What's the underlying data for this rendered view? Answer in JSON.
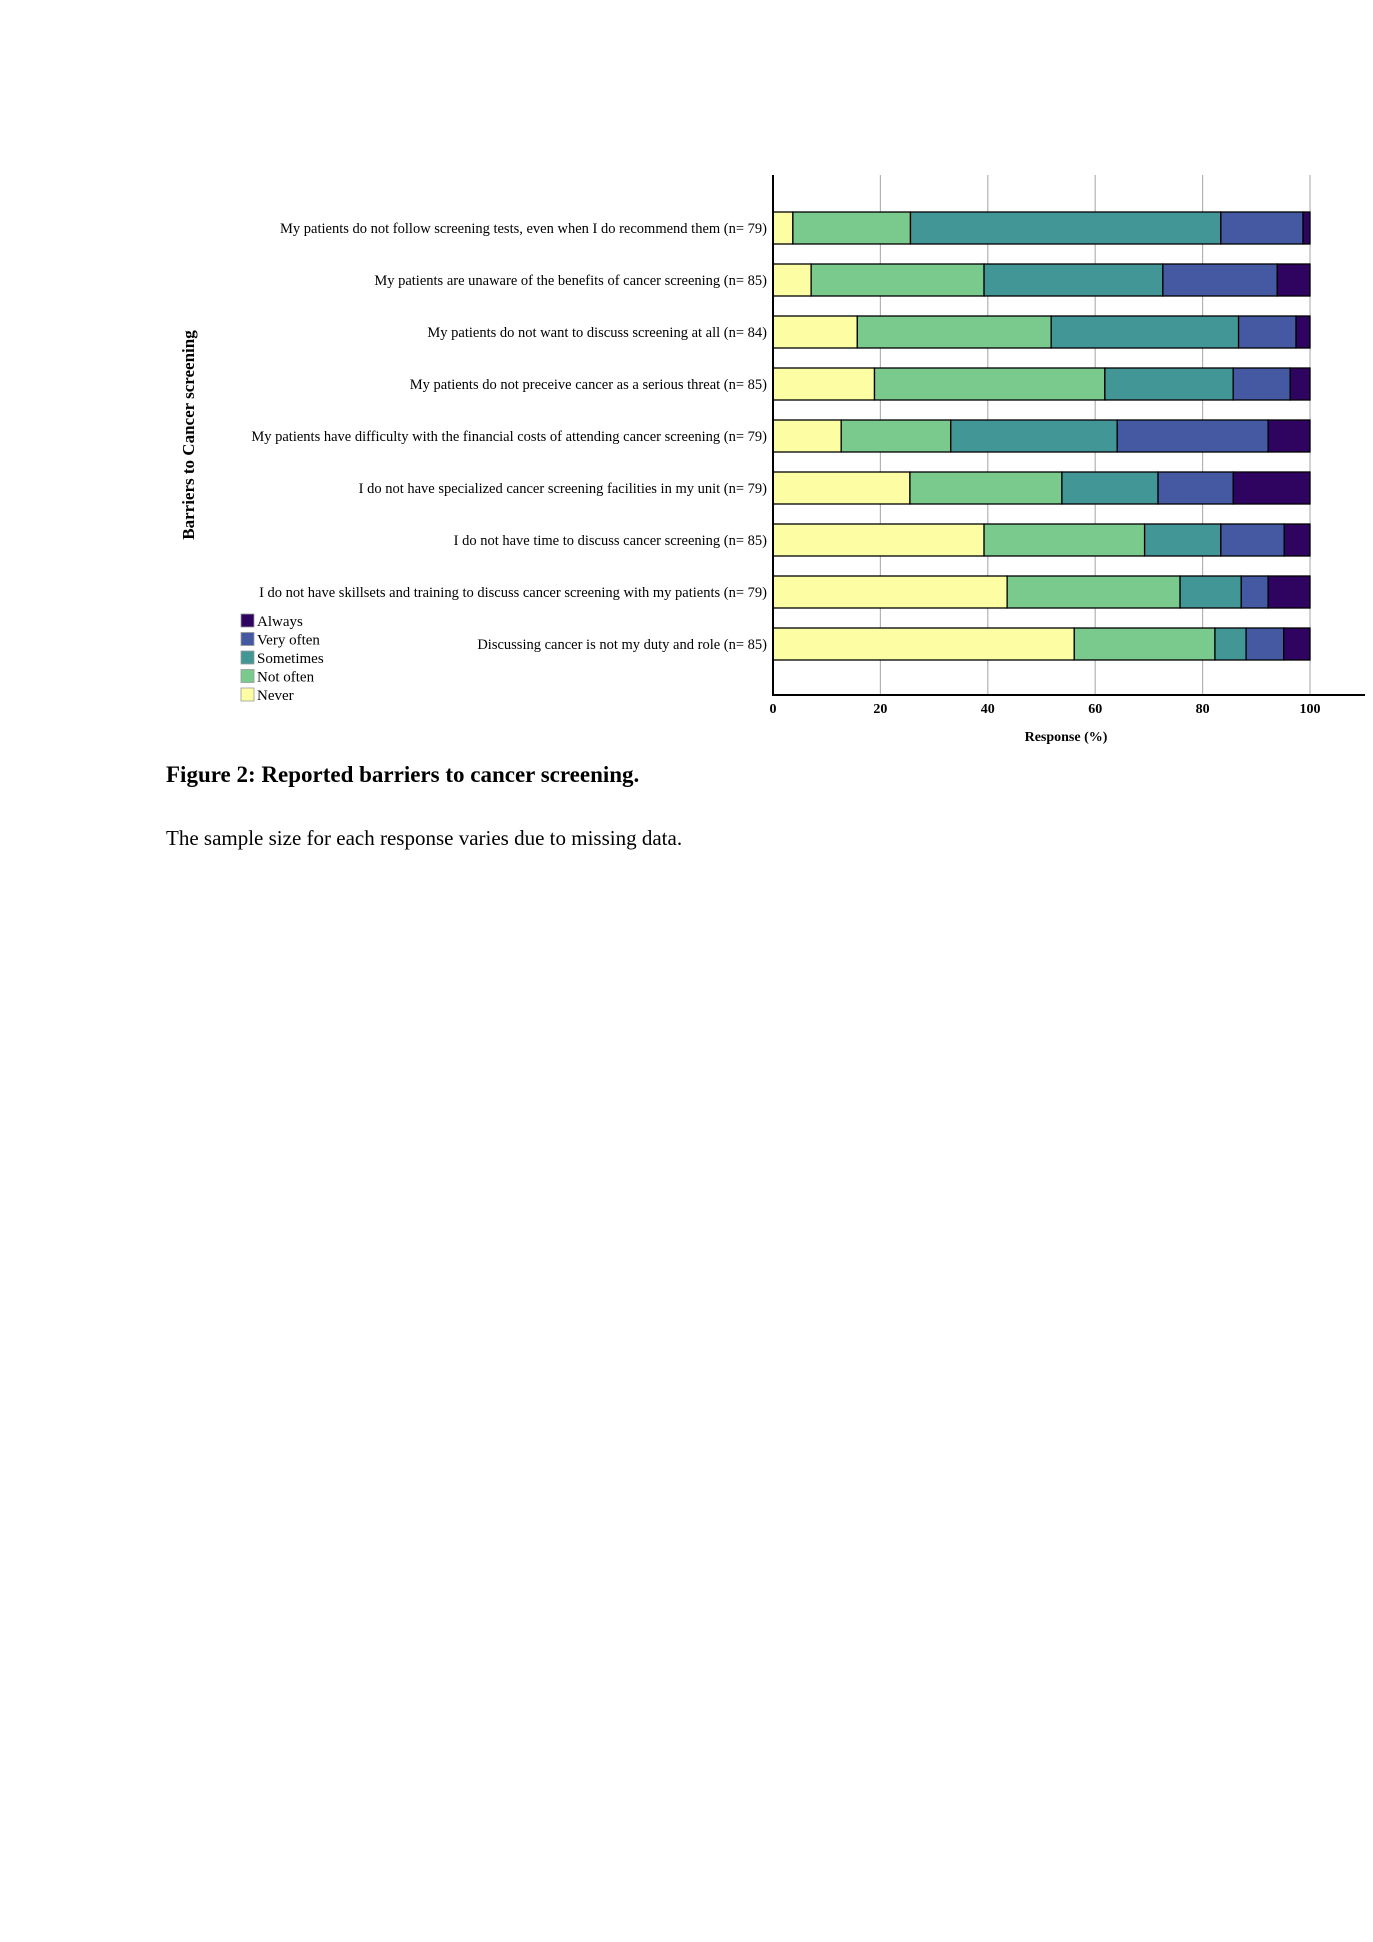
{
  "chart_data": {
    "type": "bar",
    "orientation": "horizontal",
    "stacked": true,
    "title": "",
    "xlabel": "Response (%)",
    "ylabel": "Barriers to Cancer screening",
    "xlim": [
      0,
      110
    ],
    "xticks": [
      0,
      20,
      40,
      60,
      80,
      100
    ],
    "grid": true,
    "legend_position": "bottom-left",
    "categories": [
      "My patients do not follow screening tests, even when I do recommend them (n= 79)",
      "My patients are unaware of the benefits of cancer screening (n= 85)",
      "My patients do not want to discuss screening at all (n= 84)",
      "My patients do not preceive cancer as a serious threat (n= 85)",
      "My patients have difficulty with the financial costs of attending cancer screening (n= 79)",
      "I do not have specialized cancer screening facilities in my unit (n= 79)",
      "I do not have time to discuss cancer screening (n= 85)",
      "I do not have skillsets and training to discuss cancer screening with my patients (n= 79)",
      "Discussing cancer is not my duty and role (n= 85)"
    ],
    "series": [
      {
        "name": "Never",
        "color": "#fdfea4",
        "values": [
          3.7,
          7.1,
          15.7,
          18.9,
          12.7,
          25.5,
          39.3,
          43.6,
          56.1
        ]
      },
      {
        "name": "Not often",
        "color": "#7ac98d",
        "values": [
          21.9,
          32.2,
          36.1,
          42.9,
          20.4,
          28.3,
          29.9,
          32.2,
          26.2
        ]
      },
      {
        "name": "Sometimes",
        "color": "#439696",
        "values": [
          57.8,
          33.3,
          34.9,
          23.9,
          31.0,
          17.9,
          14.2,
          11.4,
          5.8
        ]
      },
      {
        "name": "Very often",
        "color": "#4559a3",
        "values": [
          15.3,
          21.3,
          10.7,
          10.6,
          28.1,
          14.0,
          11.8,
          5.0,
          7.0
        ]
      },
      {
        "name": "Always",
        "color": "#2f0460",
        "values": [
          1.3,
          6.1,
          2.6,
          3.7,
          7.8,
          14.3,
          4.8,
          7.8,
          4.9
        ]
      }
    ],
    "legend": [
      "Always",
      "Very often",
      "Sometimes",
      "Not often",
      "Never"
    ]
  },
  "caption": {
    "title": "Figure 2: Reported barriers to cancer screening.",
    "note": "The sample size for each response varies due to missing data."
  }
}
